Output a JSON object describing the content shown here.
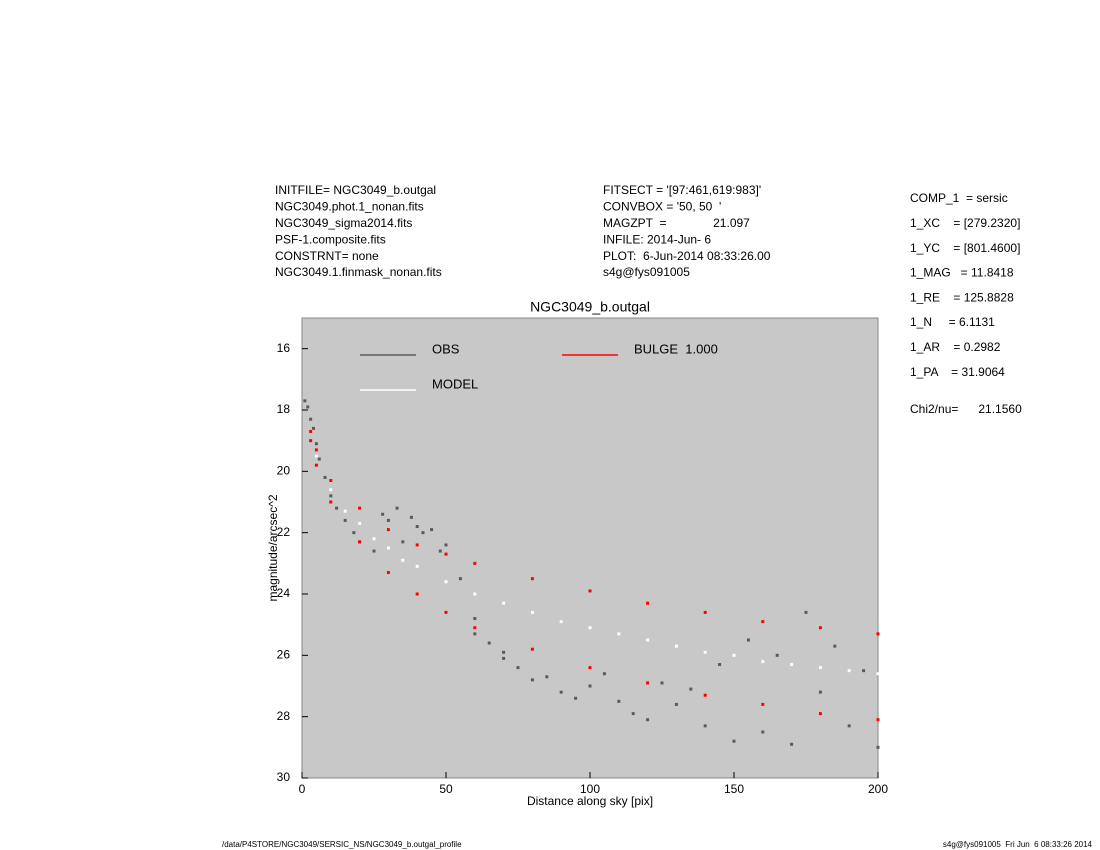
{
  "header": {
    "left": [
      "INITFILE= NGC3049_b.outgal",
      "NGC3049.phot.1_nonan.fits",
      "NGC3049_sigma2014.fits",
      "PSF-1.composite.fits",
      "CONSTRNT= none",
      "NGC3049.1.finmask_nonan.fits"
    ],
    "middle": [
      "FITSECT = '[97:461,619:983]'",
      "CONVBOX = '50, 50  '",
      "MAGZPT  =              21.097",
      "INFILE: 2014-Jun- 6",
      "PLOT:  6-Jun-2014 08:33:26.00",
      "s4g@fys091005"
    ],
    "right": [
      "COMP_1  = sersic",
      "1_XC    = [279.2320]",
      "1_YC    = [801.4600]",
      "1_MAG   = 11.8418",
      "1_RE    = 125.8828",
      "1_N     = 6.1131",
      "1_AR    = 0.2982",
      "1_PA    = 31.9064"
    ],
    "chi2": "Chi2/nu=      21.1560"
  },
  "footer": {
    "left": "/data/P4STORE/NGC3049/SERSIC_NS/NGC3049_b.outgal_profile",
    "right": "s4g@fys091005  Fri Jun  6 08:33:26 2014"
  },
  "chart_data": {
    "type": "scatter",
    "title": "NGC3049_b.outgal",
    "x_label": "Distance along sky [pix]",
    "y_label": "magnitude/arcsec^2",
    "xlim": [
      0,
      200
    ],
    "xticks": [
      0,
      50,
      100,
      150,
      200
    ],
    "ylim": [
      30,
      15
    ],
    "yticks": [
      16,
      18,
      20,
      22,
      24,
      26,
      28,
      30
    ],
    "background": "#c8c8c8",
    "series": [
      {
        "name": "OBS",
        "color": "#5a5a5a",
        "x": [
          1,
          2,
          3,
          4,
          5,
          6,
          8,
          10,
          12,
          15,
          18,
          20,
          25,
          28,
          30,
          33,
          35,
          38,
          40,
          42,
          45,
          48,
          50,
          55,
          60,
          65,
          70,
          75,
          80,
          90,
          100,
          110,
          120,
          130,
          140,
          150,
          160,
          170,
          180,
          190,
          200,
          60,
          70,
          85,
          95,
          105,
          115,
          125,
          135,
          145,
          155,
          165,
          175,
          185,
          195
        ],
        "values": [
          17.7,
          17.9,
          18.3,
          18.6,
          19.1,
          19.6,
          20.2,
          20.8,
          21.2,
          21.6,
          22.0,
          22.3,
          22.6,
          21.4,
          21.6,
          21.2,
          22.3,
          21.5,
          21.8,
          22.0,
          21.9,
          22.6,
          22.4,
          23.5,
          24.8,
          25.6,
          26.1,
          26.4,
          26.8,
          27.2,
          27.0,
          27.5,
          28.1,
          27.6,
          28.3,
          28.8,
          28.5,
          28.9,
          27.2,
          28.3,
          29.0,
          25.3,
          25.9,
          26.7,
          27.4,
          26.6,
          27.9,
          26.9,
          27.1,
          26.3,
          25.5,
          26.0,
          24.6,
          25.7,
          26.5
        ]
      },
      {
        "name": "MODEL",
        "color": "#ffffff",
        "x": [
          5,
          10,
          15,
          20,
          25,
          30,
          35,
          40,
          50,
          60,
          70,
          80,
          90,
          100,
          110,
          120,
          130,
          140,
          150,
          160,
          170,
          180,
          190,
          200
        ],
        "values": [
          19.5,
          20.6,
          21.3,
          21.7,
          22.2,
          22.5,
          22.9,
          23.1,
          23.6,
          24.0,
          24.3,
          24.6,
          24.9,
          25.1,
          25.3,
          25.5,
          25.7,
          25.9,
          26.0,
          26.2,
          26.3,
          26.4,
          26.5,
          26.6
        ]
      },
      {
        "name": "BULGE  1.000",
        "color": "#ff0000",
        "x": [
          3,
          5,
          10,
          20,
          30,
          40,
          50,
          60,
          80,
          100,
          120,
          140,
          160,
          180,
          200,
          3,
          5,
          10,
          20,
          30,
          40,
          50,
          60,
          80,
          100,
          120,
          140,
          160,
          180,
          200
        ],
        "values": [
          18.7,
          19.3,
          20.3,
          21.2,
          21.9,
          22.4,
          22.7,
          23.0,
          23.5,
          23.9,
          24.3,
          24.6,
          24.9,
          25.1,
          25.3,
          19.0,
          19.8,
          21.0,
          22.3,
          23.3,
          24.0,
          24.6,
          25.1,
          25.8,
          26.4,
          26.9,
          27.3,
          27.6,
          27.9,
          28.1
        ]
      }
    ]
  }
}
